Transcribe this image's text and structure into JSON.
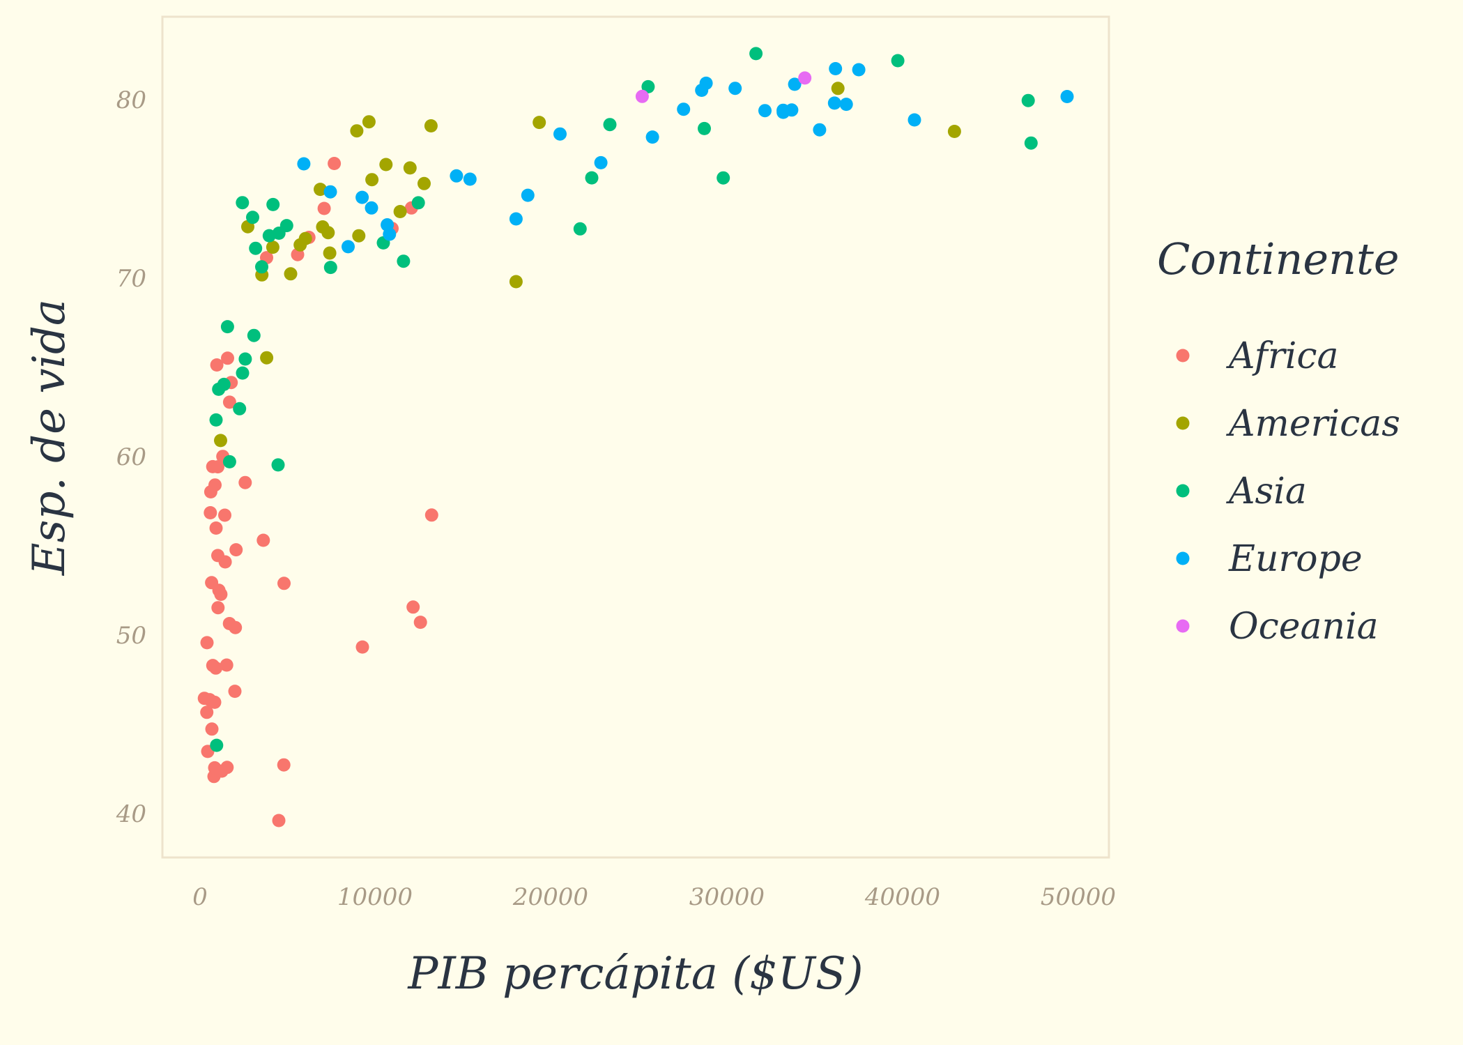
{
  "chart_data": {
    "type": "scatter",
    "title": "",
    "xlabel": "PIB percápita ($US)",
    "ylabel": "Esp. de vida",
    "xlim": [
      -1500,
      52000
    ],
    "ylim": [
      37.6,
      84.2
    ],
    "xticks": [
      0,
      10000,
      20000,
      30000,
      40000,
      50000
    ],
    "xtick_labels": [
      "0",
      "10000",
      "20000",
      "30000",
      "40000",
      "50000"
    ],
    "yticks": [
      40,
      50,
      60,
      70,
      80
    ],
    "ytick_labels": [
      "40",
      "50",
      "60",
      "70",
      "80"
    ],
    "grid": false,
    "legend": {
      "title": "Continente",
      "position": "right",
      "entries": [
        {
          "label": "Africa",
          "color": "#F8766D"
        },
        {
          "label": "Americas",
          "color": "#A3A500"
        },
        {
          "label": "Asia",
          "color": "#00BF7D"
        },
        {
          "label": "Europe",
          "color": "#00B0F6"
        },
        {
          "label": "Oceania",
          "color": "#E76BF3"
        }
      ]
    },
    "series": [
      {
        "name": "Africa",
        "color": "#F8766D",
        "points": [
          [
            6223.4,
            72.301
          ],
          [
            4797.2,
            42.731
          ],
          [
            1441.3,
            56.728
          ],
          [
            12569.9,
            50.728
          ],
          [
            1217.0,
            52.295
          ],
          [
            430.1,
            49.58
          ],
          [
            2042.1,
            50.43
          ],
          [
            706.0,
            44.741
          ],
          [
            1704.1,
            50.651
          ],
          [
            986.1,
            65.152
          ],
          [
            277.6,
            46.462
          ],
          [
            3632.6,
            55.322
          ],
          [
            1544.8,
            48.328
          ],
          [
            2082.5,
            54.791
          ],
          [
            5581.2,
            71.338
          ],
          [
            12154.1,
            51.579
          ],
          [
            641.4,
            58.04
          ],
          [
            690.8,
            52.947
          ],
          [
            13206.5,
            56.735
          ],
          [
            752.7,
            59.448
          ],
          [
            1327.6,
            60.022
          ],
          [
            942.7,
            56.007
          ],
          [
            579.2,
            46.388
          ],
          [
            1463.2,
            54.11
          ],
          [
            1569.3,
            42.592
          ],
          [
            414.5,
            45.678
          ],
          [
            12057.5,
            73.952
          ],
          [
            1044.8,
            59.443
          ],
          [
            759.3,
            48.303
          ],
          [
            1042.6,
            54.467
          ],
          [
            1803.2,
            64.164
          ],
          [
            10956.99,
            72.801
          ],
          [
            3820.2,
            71.164
          ],
          [
            824.5,
            42.082
          ],
          [
            4811.1,
            52.906
          ],
          [
            620.0,
            56.867
          ],
          [
            2014.0,
            46.859
          ],
          [
            7670.1,
            76.442
          ],
          [
            863.1,
            46.242
          ],
          [
            1598.4,
            65.528
          ],
          [
            1712.5,
            63.062
          ],
          [
            862.5,
            42.568
          ],
          [
            926.1,
            48.159
          ],
          [
            9269.7,
            49.339
          ],
          [
            2602.4,
            58.556
          ],
          [
            4513.5,
            39.613
          ],
          [
            1107.5,
            52.517
          ],
          [
            882.97,
            58.42
          ],
          [
            7092.9,
            73.923
          ],
          [
            1056.4,
            51.542
          ],
          [
            1271.2,
            42.384
          ],
          [
            469.7,
            43.487
          ]
        ]
      },
      {
        "name": "Americas",
        "color": "#A3A500",
        "points": [
          [
            12779.4,
            75.32
          ],
          [
            3822.1,
            65.554
          ],
          [
            9065.8,
            72.39
          ],
          [
            36319.2,
            80.653
          ],
          [
            13171.6,
            78.553
          ],
          [
            7006.6,
            72.889
          ],
          [
            9645.1,
            78.782
          ],
          [
            8948.1,
            78.273
          ],
          [
            6025.4,
            72.235
          ],
          [
            6873.3,
            74.994
          ],
          [
            5728.4,
            71.878
          ],
          [
            5186.1,
            70.259
          ],
          [
            1201.6,
            60.916
          ],
          [
            3548.3,
            70.198
          ],
          [
            7320.9,
            72.567
          ],
          [
            11977.6,
            76.195
          ],
          [
            2749.3,
            72.899
          ],
          [
            9809.2,
            75.537
          ],
          [
            4172.8,
            71.752
          ],
          [
            7408.9,
            71.421
          ],
          [
            19328.7,
            78.746
          ],
          [
            18008.5,
            69.819
          ],
          [
            42951.7,
            78.242
          ],
          [
            10611.5,
            76.384
          ],
          [
            11415.8,
            73.747
          ]
        ]
      },
      {
        "name": "Asia",
        "color": "#00BF7D",
        "points": [
          [
            974.6,
            43.828
          ],
          [
            29796.0,
            75.635
          ],
          [
            1391.3,
            64.062
          ],
          [
            1713.8,
            59.723
          ],
          [
            4959.1,
            72.961
          ],
          [
            39724.98,
            82.208
          ],
          [
            2452.2,
            64.698
          ],
          [
            3540.7,
            70.65
          ],
          [
            11605.7,
            70.964
          ],
          [
            4471.1,
            59.545
          ],
          [
            25523.3,
            80.745
          ],
          [
            31656.1,
            82.603
          ],
          [
            4519.5,
            72.535
          ],
          [
            1593.1,
            67.297
          ],
          [
            23348.1,
            78.623
          ],
          [
            47307.0,
            77.588
          ],
          [
            10461.1,
            71.993
          ],
          [
            12451.7,
            74.241
          ],
          [
            3095.8,
            66.803
          ],
          [
            944.0,
            62.069
          ],
          [
            1091.4,
            63.785
          ],
          [
            22316.2,
            75.64
          ],
          [
            2605.9,
            65.483
          ],
          [
            3190.5,
            71.688
          ],
          [
            21654.8,
            72.777
          ],
          [
            47143.2,
            79.972
          ],
          [
            3970.1,
            72.396
          ],
          [
            28718.3,
            78.4
          ],
          [
            4184.5,
            74.143
          ],
          [
            7458.4,
            70.616
          ],
          [
            2441.6,
            74.249
          ],
          [
            3025.3,
            73.422
          ],
          [
            2280.8,
            62.698
          ]
        ]
      },
      {
        "name": "Europe",
        "color": "#00B0F6",
        "points": [
          [
            5937.0,
            76.423
          ],
          [
            36126.5,
            79.829
          ],
          [
            33692.6,
            79.441
          ],
          [
            7446.3,
            74.852
          ],
          [
            10680.8,
            73.005
          ],
          [
            14619.2,
            75.748
          ],
          [
            22833.3,
            76.486
          ],
          [
            35278.4,
            78.332
          ],
          [
            33207.1,
            79.313
          ],
          [
            30470.0,
            80.657
          ],
          [
            32170.4,
            79.406
          ],
          [
            27538.4,
            79.483
          ],
          [
            18008.9,
            73.338
          ],
          [
            36180.8,
            81.757
          ],
          [
            40676.0,
            78.885
          ],
          [
            28569.7,
            80.546
          ],
          [
            9253.9,
            74.543
          ],
          [
            36798.0,
            79.762
          ],
          [
            49357.2,
            80.196
          ],
          [
            15389.9,
            75.563
          ],
          [
            20509.6,
            78.098
          ],
          [
            10808.5,
            72.476
          ],
          [
            9786.5,
            73.952
          ],
          [
            18678.3,
            74.663
          ],
          [
            25768.3,
            77.926
          ],
          [
            28821.1,
            80.941
          ],
          [
            33859.7,
            80.884
          ],
          [
            37506.4,
            81.701
          ],
          [
            8458.3,
            71.777
          ],
          [
            33203.3,
            79.425
          ]
        ]
      },
      {
        "name": "Oceania",
        "color": "#E76BF3",
        "points": [
          [
            34435.4,
            81.235
          ],
          [
            25185.0,
            80.204
          ]
        ]
      }
    ]
  }
}
